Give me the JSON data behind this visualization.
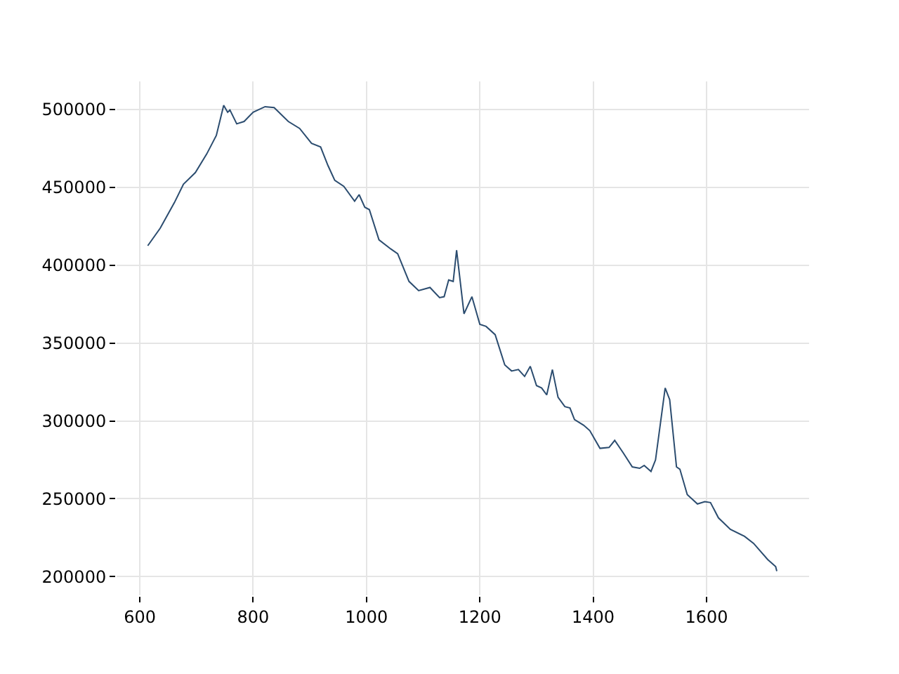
{
  "chart_data": {
    "type": "line",
    "xlim": [
      559,
      1781
    ],
    "ylim": [
      188000,
      518000
    ],
    "xticks": [
      600,
      800,
      1000,
      1200,
      1400,
      1600
    ],
    "yticks": [
      200000,
      250000,
      300000,
      350000,
      400000,
      450000,
      500000
    ],
    "grid": true,
    "series": [
      {
        "color": "#2b4c6f",
        "x": [
          614,
          636,
          661,
          677,
          698,
          718,
          735,
          748,
          755,
          759,
          771,
          784,
          800,
          821,
          837,
          862,
          882,
          903,
          919,
          932,
          944,
          960,
          979,
          987,
          997,
          1005,
          1022,
          1043,
          1055,
          1075,
          1092,
          1112,
          1129,
          1137,
          1145,
          1153,
          1159,
          1172,
          1186,
          1200,
          1211,
          1227,
          1244,
          1256,
          1268,
          1279,
          1289,
          1300,
          1309,
          1318,
          1328,
          1338,
          1350,
          1359,
          1367,
          1383,
          1394,
          1412,
          1428,
          1438,
          1453,
          1469,
          1482,
          1490,
          1502,
          1510,
          1527,
          1535,
          1547,
          1553,
          1566,
          1584,
          1597,
          1607,
          1621,
          1642,
          1667,
          1683,
          1708,
          1722,
          1724
        ],
        "values": [
          412500,
          423800,
          440200,
          452000,
          459500,
          471400,
          483300,
          502700,
          498200,
          499700,
          490800,
          492300,
          498200,
          501800,
          501200,
          492300,
          487800,
          478300,
          475900,
          464000,
          454500,
          450600,
          441100,
          445300,
          437200,
          435700,
          416300,
          410400,
          407400,
          389600,
          383700,
          385700,
          379200,
          379800,
          390500,
          389600,
          409600,
          368800,
          379800,
          362000,
          360700,
          355400,
          336000,
          332100,
          333000,
          328600,
          335100,
          322700,
          321200,
          316700,
          333000,
          315200,
          309200,
          308300,
          300900,
          297300,
          293800,
          282400,
          283000,
          287500,
          279500,
          270500,
          269600,
          271400,
          267600,
          275000,
          321200,
          313700,
          270500,
          269000,
          252700,
          246700,
          248200,
          247600,
          237800,
          230400,
          225900,
          221400,
          211000,
          206500,
          203600
        ]
      }
    ]
  }
}
